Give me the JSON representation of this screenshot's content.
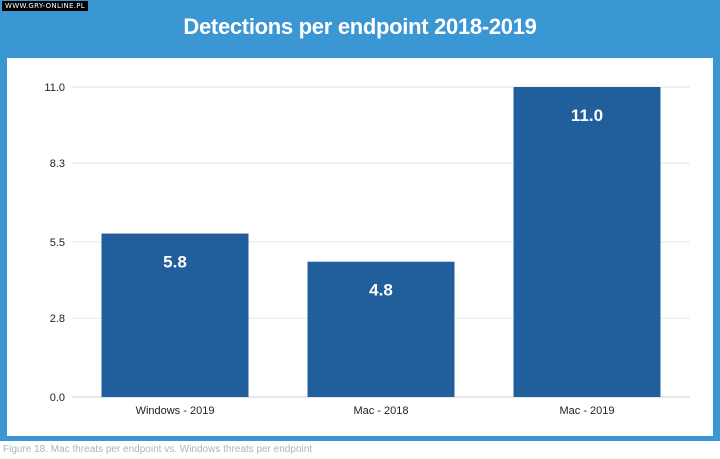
{
  "watermark": "WWW.GRY-ONLINE.PL",
  "caption": "Figure 18. Mac threats per endpoint vs. Windows threats per endpoint",
  "colors": {
    "frame": "#3a97d4",
    "bar": "#205e9c",
    "grid": "#e6e6e6"
  },
  "chart_data": {
    "type": "bar",
    "title": "Detections per endpoint 2018-2019",
    "xlabel": "",
    "ylabel": "",
    "categories": [
      "Windows - 2019",
      "Mac - 2018",
      "Mac - 2019"
    ],
    "values": [
      5.8,
      4.8,
      11.0
    ],
    "data_labels": [
      "5.8",
      "4.8",
      "11.0"
    ],
    "yticks": [
      0.0,
      2.8,
      5.5,
      8.3,
      11.0
    ],
    "ytick_labels": [
      "0.0",
      "2.8",
      "5.5",
      "8.3",
      "11.0"
    ],
    "ylim": [
      0,
      11.0
    ],
    "grid": true,
    "legend": "none"
  }
}
